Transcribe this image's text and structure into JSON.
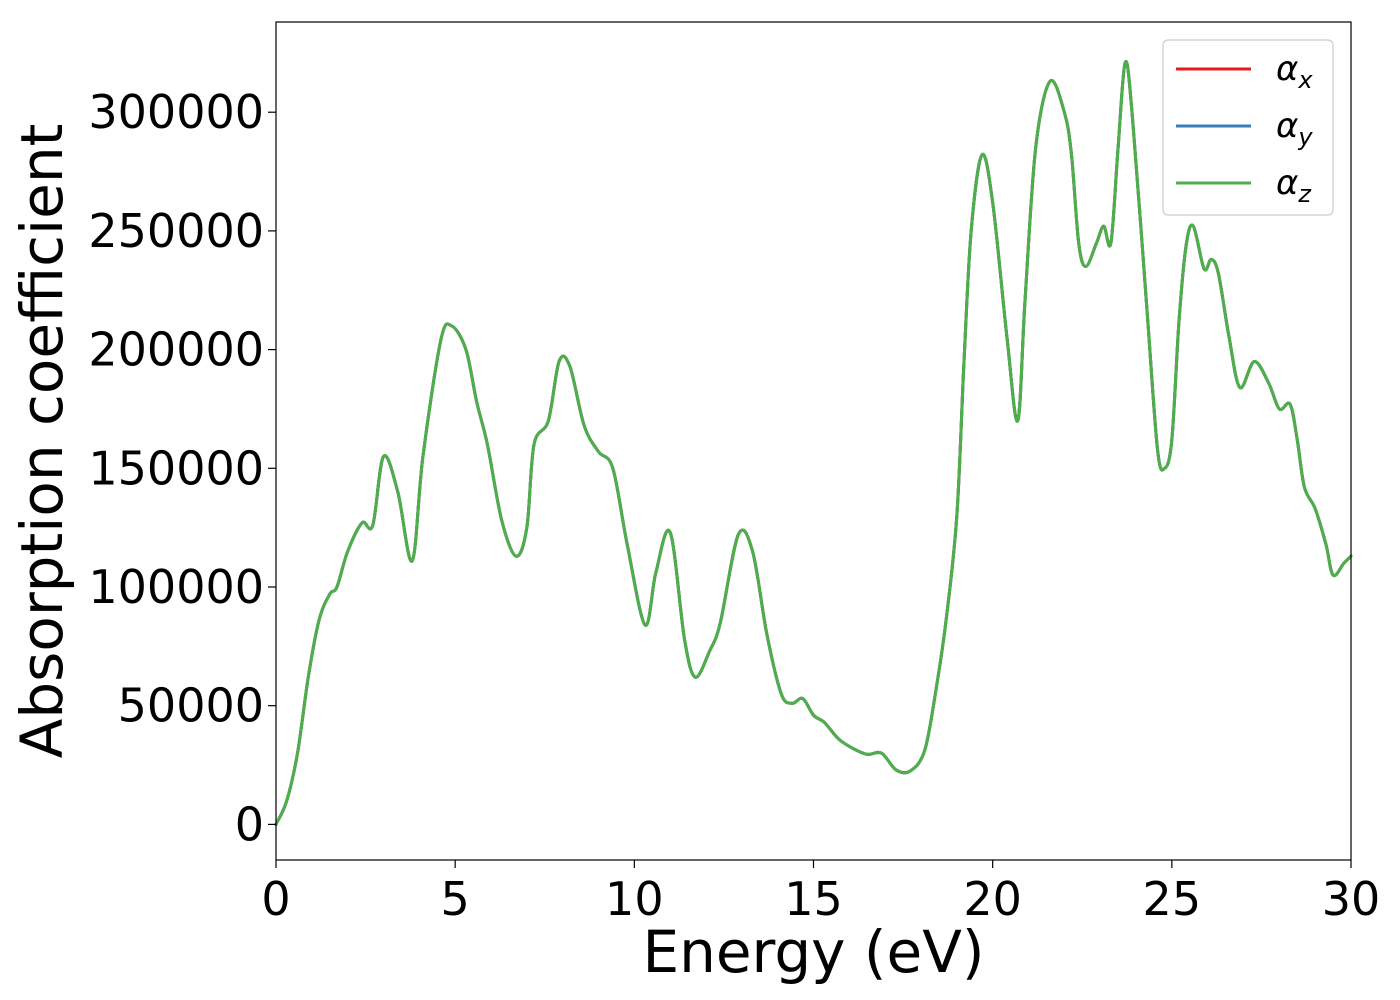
{
  "chart_data": {
    "type": "line",
    "title": "",
    "xlabel": "Energy (eV)",
    "ylabel": "Absorption coefficient",
    "xlim": [
      0,
      30
    ],
    "ylim": [
      -15000,
      338000
    ],
    "xticks": [
      "0",
      "5",
      "10",
      "15",
      "20",
      "25",
      "30"
    ],
    "yticks": [
      "0",
      "50000",
      "100000",
      "150000",
      "200000",
      "250000",
      "300000"
    ],
    "grid": false,
    "legend": {
      "placement": "top-right",
      "entries": [
        {
          "base": "α",
          "sub": "x",
          "color": "#e41a1c"
        },
        {
          "base": "α",
          "sub": "y",
          "color": "#377eb8"
        },
        {
          "base": "α",
          "sub": "z",
          "color": "#4daf4a"
        }
      ]
    },
    "x": [
      0,
      0.3,
      0.6,
      0.9,
      1.2,
      1.5,
      1.7,
      2.0,
      2.4,
      2.7,
      3.0,
      3.4,
      3.8,
      4.1,
      4.6,
      4.9,
      5.3,
      5.6,
      5.9,
      6.3,
      6.7,
      7.0,
      7.2,
      7.6,
      7.9,
      8.2,
      8.6,
      9.0,
      9.4,
      9.8,
      10.3,
      10.6,
      11.0,
      11.4,
      11.7,
      12.1,
      12.4,
      12.9,
      13.3,
      13.7,
      14.1,
      14.4,
      14.7,
      15.0,
      15.3,
      15.7,
      16.1,
      16.5,
      16.9,
      17.3,
      17.7,
      18.1,
      18.4,
      18.7,
      19.0,
      19.2,
      19.4,
      19.7,
      20.0,
      20.4,
      20.7,
      20.9,
      21.2,
      21.6,
      22.0,
      22.2,
      22.4,
      22.6,
      22.9,
      23.1,
      23.3,
      23.5,
      23.7,
      23.9,
      24.3,
      24.6,
      24.8,
      25.0,
      25.2,
      25.4,
      25.6,
      25.9,
      26.1,
      26.3,
      26.6,
      26.9,
      27.3,
      27.7,
      28.0,
      28.3,
      28.5,
      28.7,
      29.0,
      29.3,
      29.5,
      29.8,
      30.0
    ],
    "series": [
      {
        "name": "αx",
        "color": "#e41a1c",
        "y": [
          0,
          10000,
          30000,
          62000,
          86000,
          97000,
          100000,
          115000,
          127000,
          126000,
          155000,
          140000,
          111000,
          155000,
          204000,
          210000,
          200000,
          178000,
          160000,
          128000,
          113000,
          125000,
          160000,
          170000,
          195000,
          193000,
          168000,
          157000,
          150000,
          118000,
          84000,
          106000,
          123000,
          78000,
          62000,
          73000,
          85000,
          122000,
          115000,
          80000,
          55000,
          51000,
          53000,
          46000,
          43000,
          36000,
          32000,
          29500,
          30000,
          23000,
          22500,
          31000,
          55000,
          86000,
          130000,
          195000,
          250000,
          282000,
          262000,
          205000,
          170000,
          220000,
          285000,
          313000,
          300000,
          282000,
          245000,
          235000,
          245000,
          252000,
          245000,
          285000,
          321000,
          298000,
          218000,
          158000,
          150000,
          162000,
          212000,
          244000,
          252000,
          234000,
          238000,
          232000,
          205000,
          184000,
          195000,
          186000,
          175000,
          177000,
          162000,
          142000,
          133000,
          118000,
          105000,
          110000,
          113000
        ]
      },
      {
        "name": "αy",
        "color": "#377eb8",
        "y": [
          0,
          10000,
          30000,
          62000,
          86000,
          97000,
          100000,
          115000,
          127000,
          126000,
          155000,
          140000,
          111000,
          155000,
          204000,
          210000,
          200000,
          178000,
          160000,
          128000,
          113000,
          125000,
          160000,
          170000,
          195000,
          193000,
          168000,
          157000,
          150000,
          118000,
          84000,
          106000,
          123000,
          78000,
          62000,
          73000,
          85000,
          122000,
          115000,
          80000,
          55000,
          51000,
          53000,
          46000,
          43000,
          36000,
          32000,
          29500,
          30000,
          23000,
          22500,
          31000,
          55000,
          86000,
          130000,
          195000,
          250000,
          282000,
          262000,
          205000,
          170000,
          220000,
          285000,
          313000,
          300000,
          282000,
          245000,
          235000,
          245000,
          252000,
          245000,
          285000,
          321000,
          298000,
          218000,
          158000,
          150000,
          162000,
          212000,
          244000,
          252000,
          234000,
          238000,
          232000,
          205000,
          184000,
          195000,
          186000,
          175000,
          177000,
          162000,
          142000,
          133000,
          118000,
          105000,
          110000,
          113000
        ]
      },
      {
        "name": "αz",
        "color": "#4daf4a",
        "y": [
          0,
          10000,
          30000,
          62000,
          86000,
          97000,
          100000,
          115000,
          127000,
          126000,
          155000,
          140000,
          111000,
          155000,
          204000,
          210000,
          200000,
          178000,
          160000,
          128000,
          113000,
          125000,
          160000,
          170000,
          195000,
          193000,
          168000,
          157000,
          150000,
          118000,
          84000,
          106000,
          123000,
          78000,
          62000,
          73000,
          85000,
          122000,
          115000,
          80000,
          55000,
          51000,
          53000,
          46000,
          43000,
          36000,
          32000,
          29500,
          30000,
          23000,
          22500,
          31000,
          55000,
          86000,
          130000,
          195000,
          250000,
          282000,
          262000,
          205000,
          170000,
          220000,
          285000,
          313000,
          300000,
          282000,
          245000,
          235000,
          245000,
          252000,
          245000,
          285000,
          321000,
          298000,
          218000,
          158000,
          150000,
          162000,
          212000,
          244000,
          252000,
          234000,
          238000,
          232000,
          205000,
          184000,
          195000,
          186000,
          175000,
          177000,
          162000,
          142000,
          133000,
          118000,
          105000,
          110000,
          113000
        ]
      }
    ]
  }
}
